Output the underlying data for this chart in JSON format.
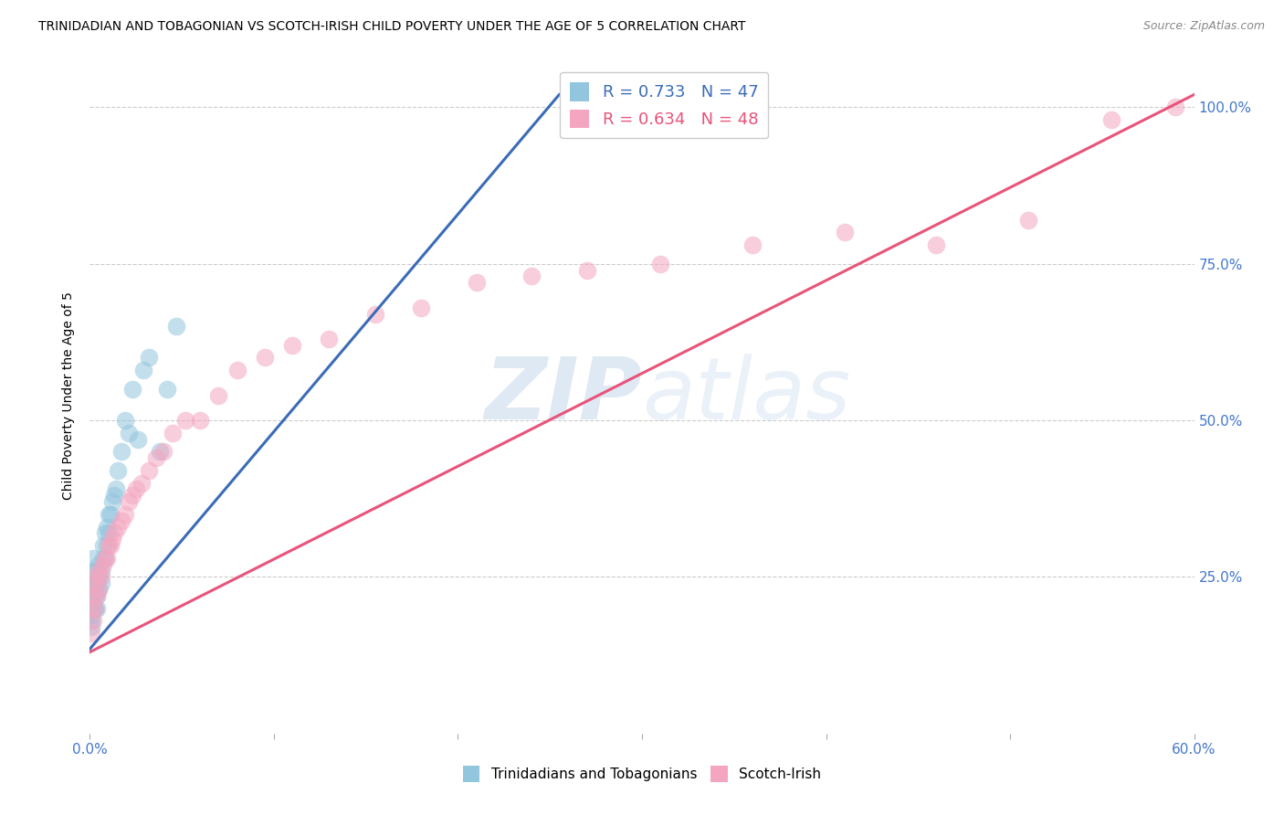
{
  "title": "TRINIDADIAN AND TOBAGONIAN VS SCOTCH-IRISH CHILD POVERTY UNDER THE AGE OF 5 CORRELATION CHART",
  "source": "Source: ZipAtlas.com",
  "ylabel": "Child Poverty Under the Age of 5",
  "xmin": 0.0,
  "xmax": 0.6,
  "ymin": 0.0,
  "ymax": 1.08,
  "xtick_positions": [
    0.0,
    0.1,
    0.2,
    0.3,
    0.4,
    0.5,
    0.6
  ],
  "xtick_labels": [
    "0.0%",
    "",
    "",
    "",
    "",
    "",
    "60.0%"
  ],
  "ytick_positions": [
    0.25,
    0.5,
    0.75,
    1.0
  ],
  "ytick_labels_right": [
    "25.0%",
    "50.0%",
    "75.0%",
    "100.0%"
  ],
  "legend_text_blue": "R = 0.733   N = 47",
  "legend_text_pink": "R = 0.634   N = 48",
  "legend_label_blue": "Trinidadians and Tobagonians",
  "legend_label_pink": "Scotch-Irish",
  "blue_scatter_color": "#92c5de",
  "pink_scatter_color": "#f4a6c0",
  "blue_line_color": "#3b6cb7",
  "pink_line_color": "#e8547a",
  "blue_line_x0": 0.0,
  "blue_line_y0": 0.135,
  "blue_line_x1": 0.255,
  "blue_line_y1": 1.02,
  "pink_line_x0": 0.0,
  "pink_line_y0": 0.13,
  "pink_line_x1": 0.6,
  "pink_line_y1": 1.02,
  "grid_color": "#cccccc",
  "background_color": "#ffffff",
  "watermark_zip": "ZIP",
  "watermark_atlas": "atlas",
  "tick_color": "#4477cc",
  "blue_x": [
    0.001,
    0.001,
    0.001,
    0.001,
    0.001,
    0.001,
    0.001,
    0.002,
    0.002,
    0.002,
    0.002,
    0.002,
    0.003,
    0.003,
    0.003,
    0.003,
    0.004,
    0.004,
    0.004,
    0.005,
    0.005,
    0.005,
    0.006,
    0.006,
    0.007,
    0.007,
    0.008,
    0.008,
    0.009,
    0.009,
    0.01,
    0.01,
    0.011,
    0.012,
    0.013,
    0.014,
    0.015,
    0.017,
    0.019,
    0.021,
    0.023,
    0.026,
    0.029,
    0.032,
    0.038,
    0.042,
    0.047
  ],
  "blue_y": [
    0.17,
    0.19,
    0.2,
    0.21,
    0.22,
    0.23,
    0.18,
    0.2,
    0.22,
    0.24,
    0.26,
    0.28,
    0.2,
    0.22,
    0.24,
    0.26,
    0.22,
    0.24,
    0.2,
    0.23,
    0.25,
    0.27,
    0.24,
    0.26,
    0.28,
    0.3,
    0.28,
    0.32,
    0.3,
    0.33,
    0.32,
    0.35,
    0.35,
    0.37,
    0.38,
    0.39,
    0.42,
    0.45,
    0.5,
    0.48,
    0.55,
    0.47,
    0.58,
    0.6,
    0.45,
    0.55,
    0.65
  ],
  "pink_x": [
    0.001,
    0.001,
    0.002,
    0.002,
    0.003,
    0.003,
    0.004,
    0.004,
    0.005,
    0.005,
    0.006,
    0.007,
    0.008,
    0.009,
    0.01,
    0.011,
    0.012,
    0.013,
    0.015,
    0.017,
    0.019,
    0.021,
    0.023,
    0.025,
    0.028,
    0.032,
    0.036,
    0.04,
    0.045,
    0.052,
    0.06,
    0.07,
    0.08,
    0.095,
    0.11,
    0.13,
    0.155,
    0.18,
    0.21,
    0.24,
    0.27,
    0.31,
    0.36,
    0.41,
    0.46,
    0.51,
    0.555,
    0.59
  ],
  "pink_y": [
    0.16,
    0.2,
    0.18,
    0.22,
    0.2,
    0.24,
    0.22,
    0.25,
    0.23,
    0.26,
    0.25,
    0.27,
    0.28,
    0.28,
    0.3,
    0.3,
    0.31,
    0.32,
    0.33,
    0.34,
    0.35,
    0.37,
    0.38,
    0.39,
    0.4,
    0.42,
    0.44,
    0.45,
    0.48,
    0.5,
    0.5,
    0.54,
    0.58,
    0.6,
    0.62,
    0.63,
    0.67,
    0.68,
    0.72,
    0.73,
    0.74,
    0.75,
    0.78,
    0.8,
    0.78,
    0.82,
    0.98,
    1.0
  ]
}
